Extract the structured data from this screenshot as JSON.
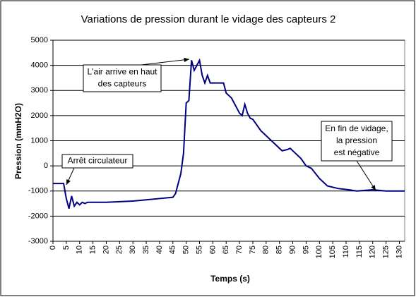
{
  "chart_data": {
    "type": "line",
    "title": "Variations de pression durant le vidage des capteurs 2",
    "y_label": "Pression (mmH2O)",
    "x_label": "Temps (s)",
    "xlim": [
      0,
      132
    ],
    "ylim": [
      -3000,
      5000
    ],
    "xticks": [
      0,
      5,
      10,
      15,
      20,
      25,
      30,
      35,
      40,
      45,
      50,
      55,
      60,
      65,
      70,
      75,
      80,
      85,
      90,
      95,
      100,
      105,
      110,
      115,
      120,
      125,
      130
    ],
    "yticks": [
      -3000,
      -2000,
      -1000,
      0,
      1000,
      2000,
      3000,
      4000,
      5000
    ],
    "grid": true,
    "series": [
      {
        "name": "Pression",
        "color": "#000080",
        "x": [
          0,
          4,
          5,
          6,
          7,
          8,
          9,
          10,
          11,
          12,
          13,
          15,
          20,
          30,
          35,
          40,
          45,
          46,
          47,
          48,
          49,
          50,
          51,
          52,
          53,
          54,
          55,
          56,
          57,
          58,
          59,
          60,
          64,
          65,
          67,
          70,
          71,
          72,
          73,
          74,
          75,
          78,
          82,
          84,
          86,
          88,
          89,
          91,
          93,
          95,
          97,
          100,
          103,
          107,
          111,
          114,
          120,
          125,
          132
        ],
        "values": [
          -700,
          -700,
          -1300,
          -1700,
          -1200,
          -1600,
          -1450,
          -1550,
          -1450,
          -1500,
          -1450,
          -1450,
          -1450,
          -1400,
          -1350,
          -1300,
          -1250,
          -1100,
          -700,
          -300,
          500,
          2500,
          2600,
          4200,
          3800,
          4000,
          4200,
          3600,
          3300,
          3600,
          3300,
          3300,
          3300,
          2900,
          2700,
          2100,
          2000,
          2450,
          2100,
          1900,
          1850,
          1400,
          1000,
          800,
          600,
          650,
          700,
          500,
          300,
          0,
          -100,
          -500,
          -800,
          -900,
          -950,
          -1000,
          -950,
          -1000,
          -1000
        ]
      }
    ],
    "annotations": [
      {
        "lines": [
          "L'air arrive en haut",
          "des capteurs"
        ]
      },
      {
        "lines": [
          "Arrêt circulateur"
        ]
      },
      {
        "lines": [
          "En fin de vidage,",
          "la pression",
          "est négative"
        ]
      }
    ]
  }
}
